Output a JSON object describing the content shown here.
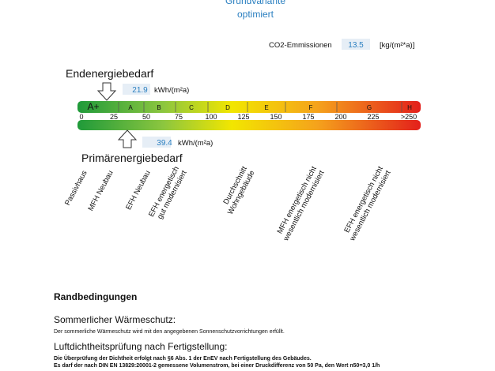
{
  "header": {
    "title": "Grundvariante",
    "subtitle": "optimiert"
  },
  "co2": {
    "label": "CO2-Emmissionen",
    "value": "13.5",
    "unit": "[kg/(m²*a)]"
  },
  "end_energy": {
    "label": "Endenergiebedarf",
    "value": "21.9",
    "unit": "kWh/(m²a)"
  },
  "scale": {
    "classes": [
      "A+",
      "A",
      "B",
      "C",
      "D",
      "E",
      "F",
      "G",
      "H"
    ],
    "ticks": [
      "0",
      "25",
      "50",
      "75",
      "100",
      "125",
      "150",
      "175",
      "200",
      "225",
      ">250"
    ]
  },
  "primary_energy": {
    "label": "Primärenergiebedarf",
    "value": "39.4",
    "unit": "kWh/(m²a)"
  },
  "building_types": [
    [
      "Passivhaus"
    ],
    [
      "MFH Neubau"
    ],
    [
      "EFH Neubau"
    ],
    [
      "EFH energetisch",
      "gut modernisiert"
    ],
    [
      "Durchschnitt",
      "Wohngebäude"
    ],
    [
      "MFH energetisch nicht",
      "wesentlich modernisiert"
    ],
    [
      "EFH energetisch nicht",
      "wesentlich modernisiert"
    ]
  ],
  "conditions": {
    "title": "Randbedingungen",
    "items": [
      {
        "heading": "Sommerlicher Wärmeschutz:",
        "lines": [
          "Der sommerliche Wärmeschutz wird mit den angegebenen Sonnenschutzvorrichtungen erfüllt."
        ]
      },
      {
        "heading": "Luftdichtheitsprüfung nach Fertigstellung:",
        "lines": [
          "Die Überprüfung der Dichtheit erfolgt nach §6 Abs. 1 der EnEV nach Fertigstellung des Gebäudes.",
          "Es darf der nach DIN EN 13829:20001-2 gemessene Volumenstrom, bei einer Druckdifferenz von 50 Pa, den Wert n50=3,0 1/h"
        ]
      }
    ]
  }
}
